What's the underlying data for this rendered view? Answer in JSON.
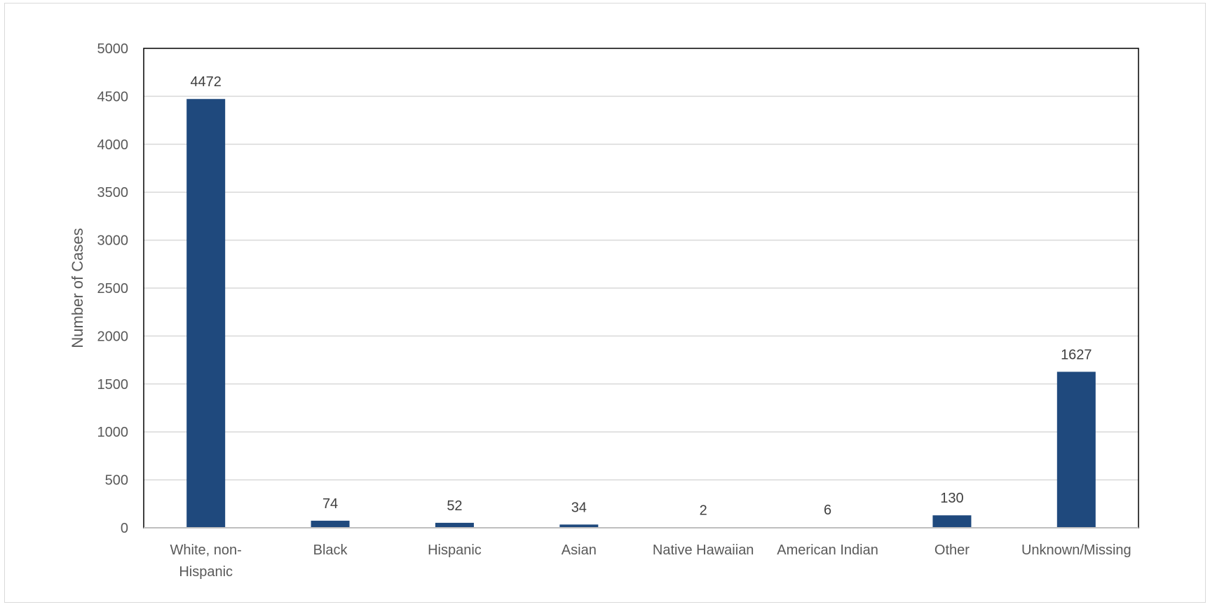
{
  "chart_data": {
    "type": "bar",
    "title": "",
    "xlabel": "",
    "ylabel": "Number of Cases",
    "ylim": [
      0,
      5000
    ],
    "yticks": [
      0,
      500,
      1000,
      1500,
      2000,
      2500,
      3000,
      3500,
      4000,
      4500,
      5000
    ],
    "grid": true,
    "legend": "none",
    "bar_color": "#1f497d",
    "categories": [
      [
        "White, non-",
        "Hispanic"
      ],
      [
        "Black"
      ],
      [
        "Hispanic"
      ],
      [
        "Asian"
      ],
      [
        "Native Hawaiian"
      ],
      [
        "American Indian"
      ],
      [
        "Other"
      ],
      [
        "Unknown/Missing"
      ]
    ],
    "values": [
      4472,
      74,
      52,
      34,
      2,
      6,
      130,
      1627
    ]
  }
}
